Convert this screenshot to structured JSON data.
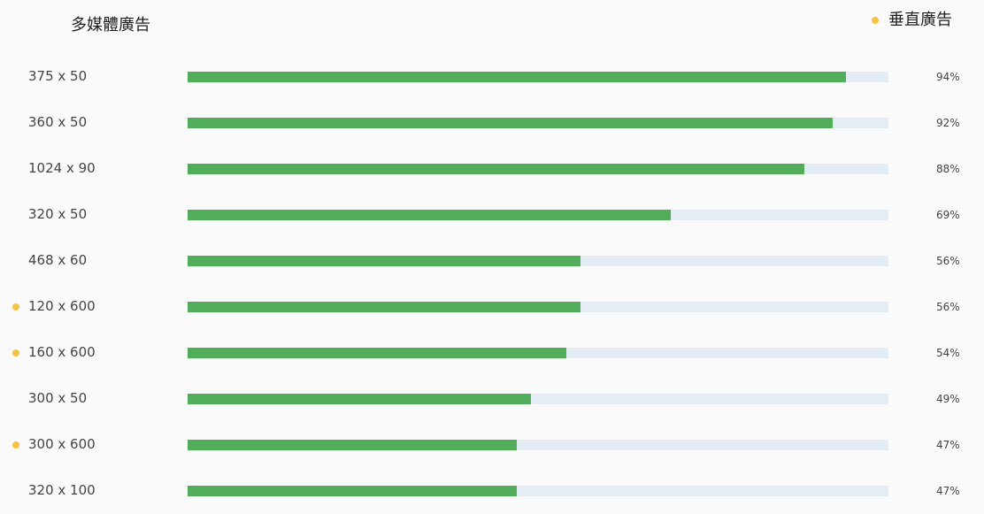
{
  "header": {
    "title": "多媒體廣告"
  },
  "legend": {
    "label": "垂直廣告",
    "color": "#f5c243"
  },
  "colors": {
    "bar_fill": "#52ad5a",
    "bar_track": "#e3edf3",
    "vertical_dot": "#f5c243"
  },
  "chart_data": {
    "type": "bar",
    "orientation": "horizontal",
    "title": "多媒體廣告",
    "legend": [
      {
        "name": "垂直廣告",
        "marker": "dot"
      }
    ],
    "legend_position": "top-right",
    "xlim": [
      0,
      100
    ],
    "grid": false,
    "categories": [
      "375 x 50",
      "360 x 50",
      "1024 x 90",
      "320 x 50",
      "468 x 60",
      "120 x 600",
      "160 x 600",
      "300 x 50",
      "300 x 600",
      "320 x 100"
    ],
    "values": [
      94,
      92,
      88,
      69,
      56,
      56,
      54,
      49,
      47,
      47
    ],
    "value_labels": [
      "94%",
      "92%",
      "88%",
      "69%",
      "56%",
      "56%",
      "54%",
      "49%",
      "47%",
      "47%"
    ],
    "vertical": [
      false,
      false,
      false,
      false,
      false,
      true,
      true,
      false,
      true,
      false
    ]
  }
}
